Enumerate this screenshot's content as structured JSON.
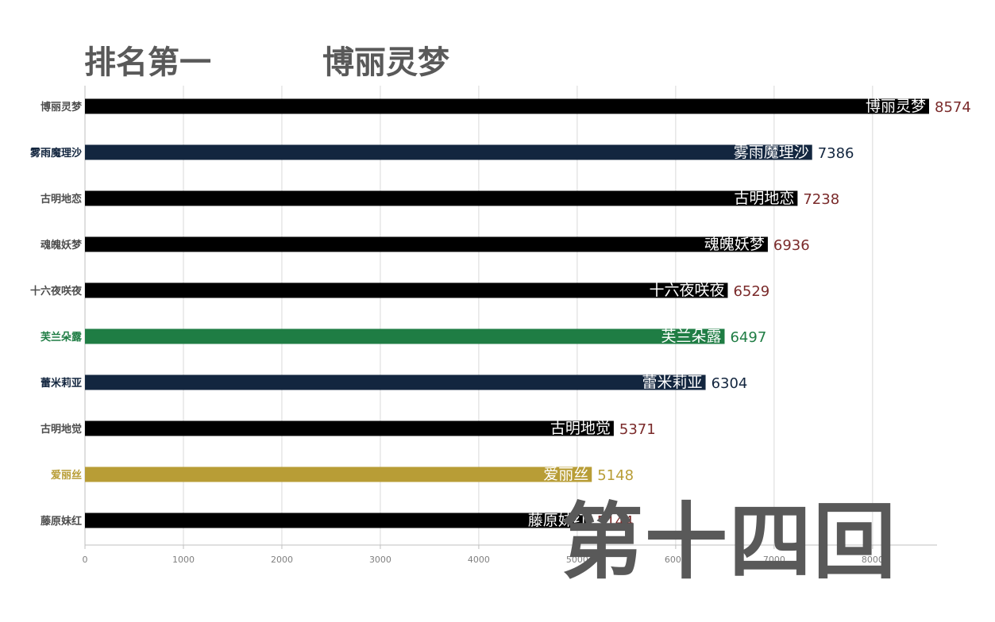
{
  "header": {
    "rank_label": "排名第一",
    "leader_name": "博丽灵梦"
  },
  "round_label": "第十四回",
  "chart_data": {
    "type": "bar",
    "orientation": "horizontal",
    "title": "",
    "xlabel": "",
    "ylabel": "",
    "xlim": [
      0,
      8574
    ],
    "xticks": [
      0,
      1000,
      2000,
      3000,
      4000,
      5000,
      6000,
      7000,
      8000
    ],
    "grid": true,
    "categories": [
      "博丽灵梦",
      "雾雨魔理沙",
      "古明地恋",
      "魂魄妖梦",
      "十六夜咲夜",
      "芙兰朵露",
      "蕾米莉亚",
      "古明地觉",
      "爱丽丝",
      "藤原妹红"
    ],
    "values": [
      8574,
      7386,
      7238,
      6936,
      6529,
      6497,
      6304,
      5371,
      5148,
      5144
    ],
    "bar_colors": [
      "#000000",
      "#13263f",
      "#000000",
      "#000000",
      "#000000",
      "#1f7d44",
      "#13263f",
      "#000000",
      "#b89d36",
      "#000000"
    ],
    "category_label_colors": [
      "#4d4d4d",
      "#13263f",
      "#4d4d4d",
      "#4d4d4d",
      "#4d4d4d",
      "#1f7d44",
      "#13263f",
      "#4d4d4d",
      "#b89d36",
      "#4d4d4d"
    ],
    "value_label_colors": [
      "#7a2a2a",
      "#13263f",
      "#7a2a2a",
      "#7a2a2a",
      "#7a2a2a",
      "#1f7d44",
      "#13263f",
      "#7a2a2a",
      "#b89d36",
      "#7a2a2a"
    ]
  }
}
